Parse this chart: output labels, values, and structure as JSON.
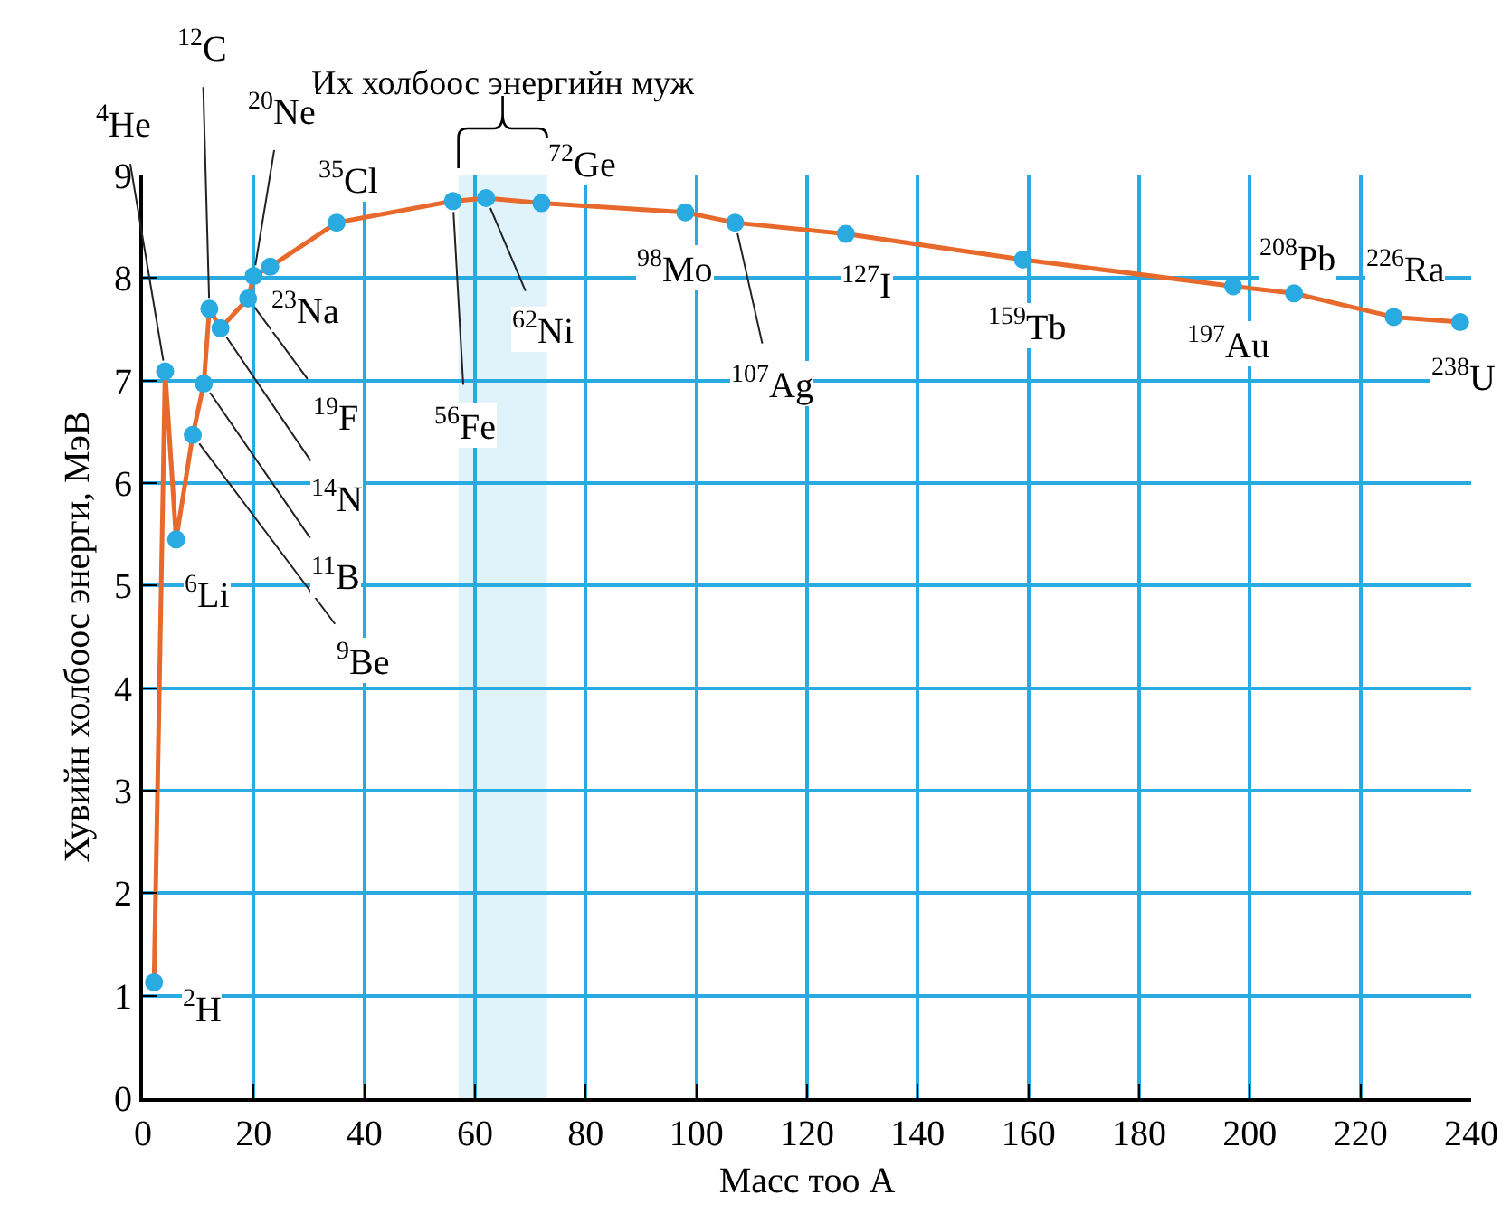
{
  "chart_data": {
    "type": "line",
    "xlabel": "Масс тоо A",
    "ylabel": "Хувийн холбоос энерги, МэВ",
    "x": [
      2,
      4,
      6,
      9,
      11,
      12,
      14,
      19,
      20,
      23,
      35,
      56,
      62,
      72,
      98,
      107,
      127,
      159,
      197,
      208,
      226,
      238
    ],
    "series": [
      {
        "color": "#e8692c",
        "colors": [
          "#29aae1",
          "#29aae1",
          "#29aae1",
          "#29aae1",
          "#29aae1",
          "#29aae1",
          "#29aae1",
          "#29aae1",
          "#29aae1",
          "#29aae1",
          "#29aae1",
          "#29aae1",
          "#29aae1",
          "#29aae1",
          "#29aae1",
          "#29aae1",
          "#29aae1",
          "#29aae1",
          "#29aae1",
          "#29aae1",
          "#29aae1",
          "#29aae1"
        ],
        "values": [
          1.13,
          7.09,
          5.45,
          6.47,
          6.97,
          7.7,
          7.51,
          7.8,
          8.02,
          8.11,
          8.54,
          8.75,
          8.78,
          8.73,
          8.64,
          8.54,
          8.43,
          8.18,
          7.92,
          7.85,
          7.62,
          7.57
        ]
      }
    ],
    "marker": "circle",
    "line_style": "solid",
    "xlim": [
      0,
      240
    ],
    "xticks": [
      0,
      20,
      40,
      60,
      80,
      100,
      120,
      140,
      160,
      180,
      200,
      220,
      240
    ],
    "ylim": [
      0,
      9
    ],
    "yticks": [
      0,
      1,
      2,
      3,
      4,
      5,
      6,
      7,
      8,
      9
    ],
    "grid": true,
    "legend": false,
    "bands": [
      {
        "axis": "x",
        "from": 57,
        "to": 73,
        "label": "Их холбоос энергийн муж",
        "color": "#e0f3fb"
      }
    ],
    "annotations": [
      {
        "text": "$^{2}$H",
        "x": 2,
        "y": 1.13
      },
      {
        "text": "$^{4}$He",
        "x": 4,
        "y": 7.09
      },
      {
        "text": "$^{6}$Li",
        "x": 6,
        "y": 5.45
      },
      {
        "text": "$^{9}$Be",
        "x": 9,
        "y": 6.47
      },
      {
        "text": "$^{11}$B",
        "x": 11,
        "y": 6.97
      },
      {
        "text": "$^{12}$C",
        "x": 12,
        "y": 7.7
      },
      {
        "text": "$^{14}$N",
        "x": 14,
        "y": 7.51
      },
      {
        "text": "$^{19}$F",
        "x": 19,
        "y": 7.8
      },
      {
        "text": "$^{20}$Ne",
        "x": 20,
        "y": 8.02
      },
      {
        "text": "$^{23}$Na",
        "x": 23,
        "y": 8.11
      },
      {
        "text": "$^{35}$Cl",
        "x": 35,
        "y": 8.54
      },
      {
        "text": "$^{56}$Fe",
        "x": 56,
        "y": 8.75
      },
      {
        "text": "$^{62}$Ni",
        "x": 62,
        "y": 8.78
      },
      {
        "text": "$^{72}$Ge",
        "x": 72,
        "y": 8.73
      },
      {
        "text": "$^{98}$Mo",
        "x": 98,
        "y": 8.64
      },
      {
        "text": "$^{107}$Ag",
        "x": 107,
        "y": 8.54
      },
      {
        "text": "$^{127}$I",
        "x": 127,
        "y": 8.43
      },
      {
        "text": "$^{159}$Tb",
        "x": 159,
        "y": 8.18
      },
      {
        "text": "$^{197}$Au",
        "x": 197,
        "y": 7.92
      },
      {
        "text": "$^{208}$Pb",
        "x": 208,
        "y": 7.85
      },
      {
        "text": "$^{226}$Ra",
        "x": 226,
        "y": 7.62
      },
      {
        "text": "$^{238}$U",
        "x": 238,
        "y": 7.57
      }
    ]
  }
}
